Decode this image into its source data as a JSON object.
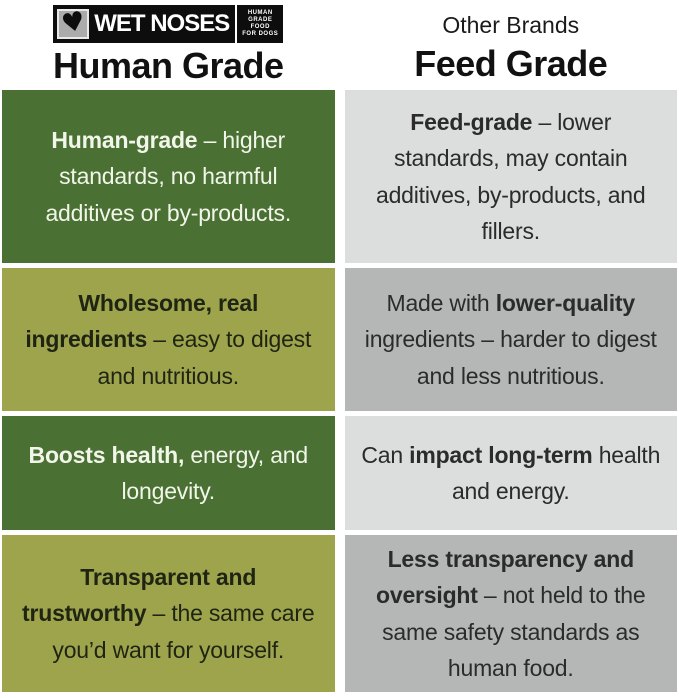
{
  "header": {
    "logo": {
      "brand": "WET NOSES",
      "nose_icon": "dog-nose-heart-icon",
      "tagline": [
        "HUMAN",
        "GRADE",
        "FOOD",
        "FOR DOGS"
      ]
    },
    "left_title": "Human Grade",
    "right_subtitle": "Other Brands",
    "right_title": "Feed Grade"
  },
  "colors": {
    "dark_green": "#4a7033",
    "olive_green": "#9da44c",
    "light_gray": "#dcdddd",
    "mid_gray": "#b5b6b6",
    "logo_black": "#0d0d0d",
    "heading_text": "#111111",
    "green_cell_text": "#f2f6ea",
    "olive_cell_text": "#1f2413",
    "gray_cell_text": "#2b2b2b"
  },
  "rows": [
    {
      "left": {
        "segments": [
          {
            "t": "Human-grade",
            "b": true
          },
          {
            "t": " – higher standards, no harmful additives or by-products.",
            "b": false
          }
        ]
      },
      "right": {
        "segments": [
          {
            "t": "Feed-grade",
            "b": true
          },
          {
            "t": " – lower standards, may contain additives, by-products, and fillers.",
            "b": false
          }
        ]
      }
    },
    {
      "left": {
        "segments": [
          {
            "t": "Wholesome, real ingredients",
            "b": true
          },
          {
            "t": " – easy to digest and nutritious.",
            "b": false
          }
        ]
      },
      "right": {
        "segments": [
          {
            "t": "Made with ",
            "b": false
          },
          {
            "t": "lower-quality",
            "b": true
          },
          {
            "t": " ingredients – harder to digest and less nutritious.",
            "b": false
          }
        ]
      }
    },
    {
      "left": {
        "segments": [
          {
            "t": "Boosts health,",
            "b": true
          },
          {
            "t": " energy, and longevity.",
            "b": false
          }
        ]
      },
      "right": {
        "segments": [
          {
            "t": "Can ",
            "b": false
          },
          {
            "t": "impact long-term",
            "b": true
          },
          {
            "t": " health and energy.",
            "b": false
          }
        ]
      }
    },
    {
      "left": {
        "segments": [
          {
            "t": "Transparent and trustworthy",
            "b": true
          },
          {
            "t": " – the same care you’d want for yourself.",
            "b": false
          }
        ]
      },
      "right": {
        "segments": [
          {
            "t": "Less transparency and oversight",
            "b": true
          },
          {
            "t": " – not held to the same safety standards as human food.",
            "b": false
          }
        ]
      }
    }
  ]
}
